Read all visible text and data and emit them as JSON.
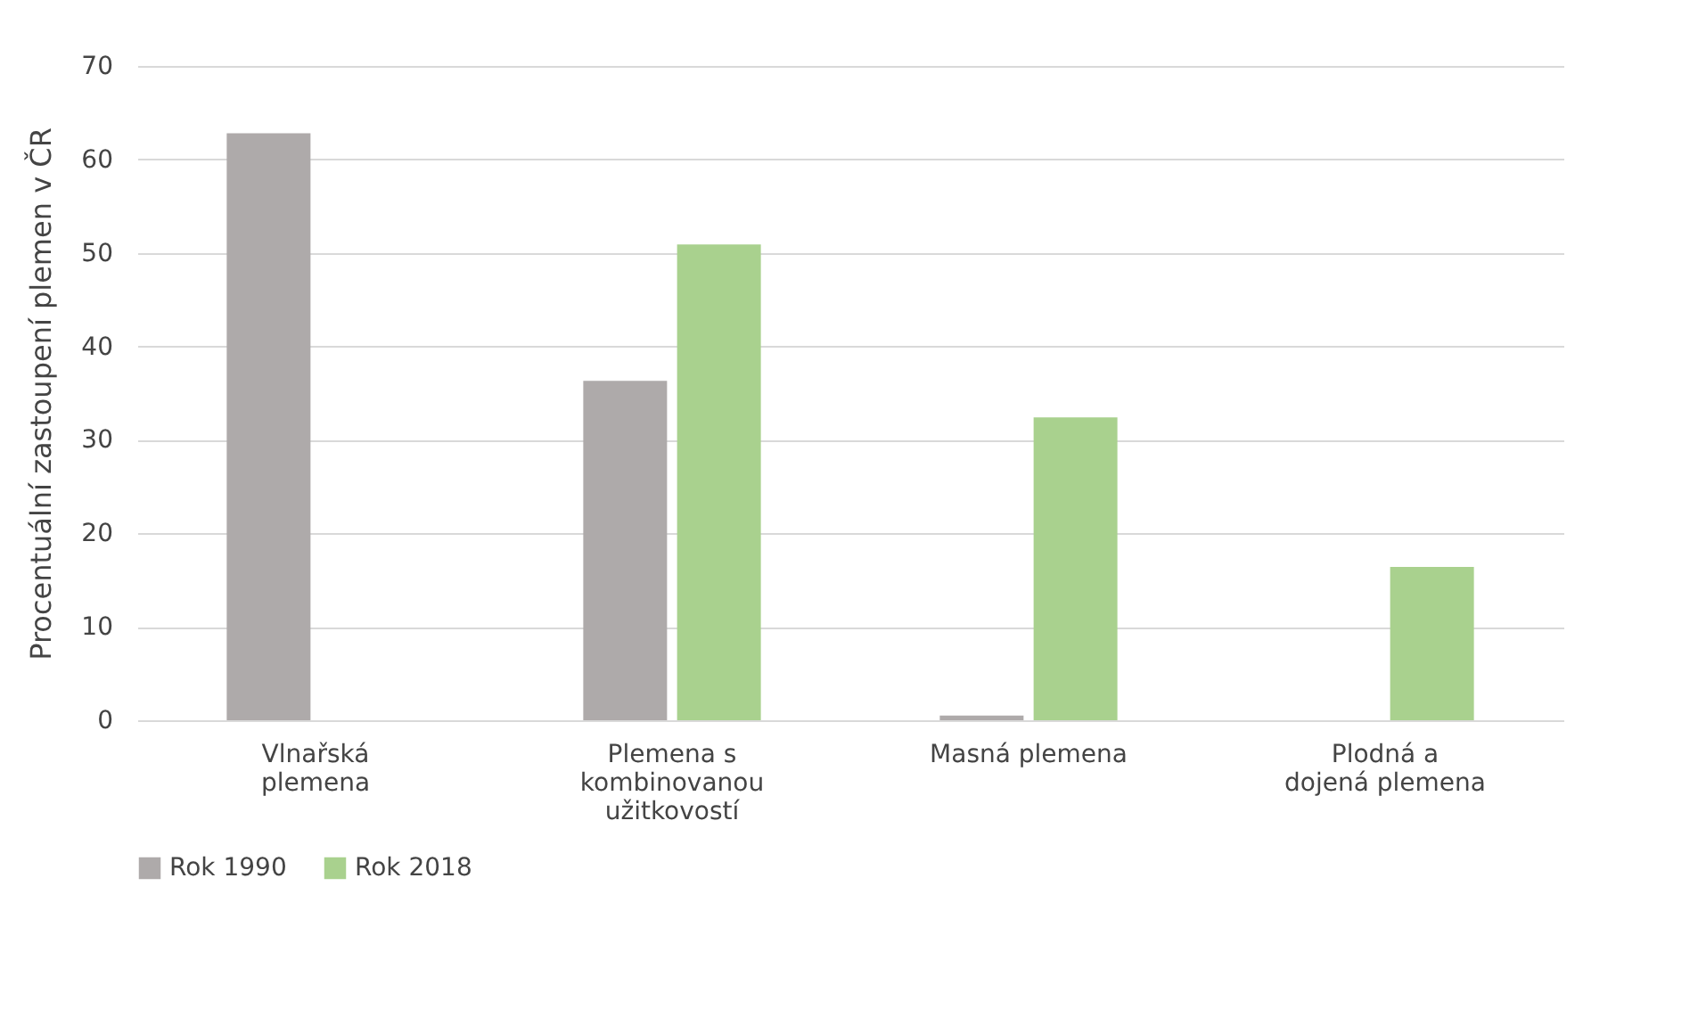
{
  "chart_data": {
    "type": "bar",
    "ylabel": "Procentuální zastoupení plemen v ČR",
    "categories": [
      "Vlnařská plemena",
      "Plemena s kombinovanou užitkovostí",
      "Masná plemena",
      "Plodná a dojená plemena"
    ],
    "series": [
      {
        "name": "Rok 1990",
        "color": "#aeaaaa",
        "values": [
          62.8,
          36.3,
          0.5,
          null
        ]
      },
      {
        "name": "Rok 2018",
        "color": "#a9d18e",
        "values": [
          0,
          50.9,
          32.4,
          16.4
        ]
      }
    ],
    "ylim": [
      0,
      70
    ],
    "yticks": [
      0,
      10,
      20,
      30,
      40,
      50,
      60,
      70
    ],
    "grid": "y",
    "legend": "bottom"
  }
}
